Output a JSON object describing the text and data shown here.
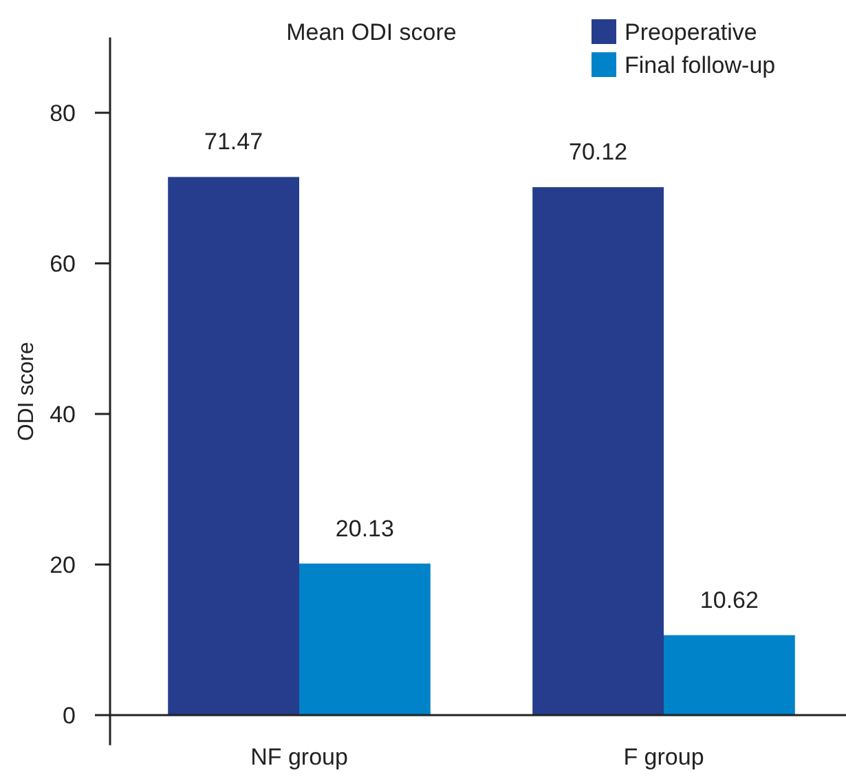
{
  "chart_data": {
    "type": "bar",
    "title": "Mean ODI score",
    "ylabel": "ODI score",
    "categories": [
      "NF group",
      "F group"
    ],
    "series": [
      {
        "name": "Preoperative",
        "color": "#253d8c",
        "values": [
          71.47,
          70.12
        ]
      },
      {
        "name": "Final follow-up",
        "color": "#0083c8",
        "values": [
          20.13,
          10.62
        ]
      }
    ],
    "ylim": [
      -4,
      90
    ],
    "yticks": [
      0,
      20,
      40,
      60,
      80
    ],
    "data_labels": true,
    "legend": "top right",
    "grid": false
  }
}
